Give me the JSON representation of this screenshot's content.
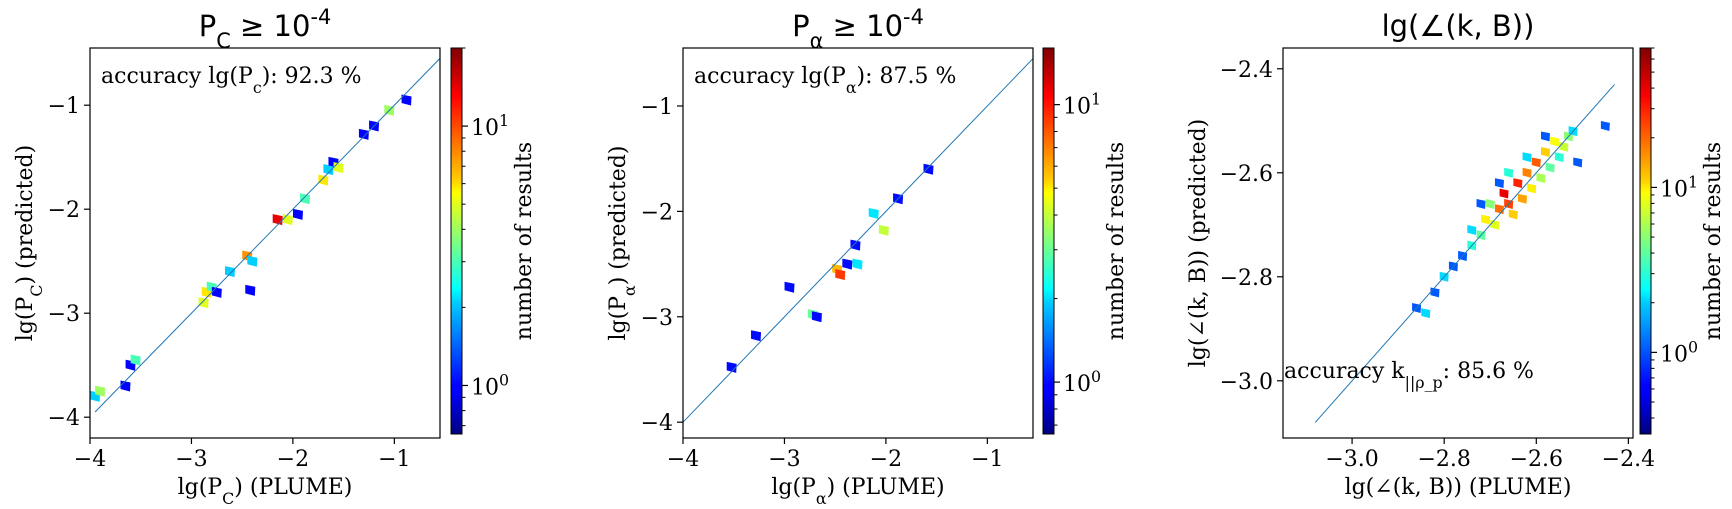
{
  "chart_data": [
    {
      "type": "heatmap",
      "title": "P_C ≥ 10^-4",
      "xlabel": "lg(P_C) (PLUME)",
      "ylabel": "lg(P_C) (predicted)",
      "annotation": "accuracy lg(P_c): 92.3 %",
      "colorbar_label": "number of results",
      "colorbar_ticks": [
        "10^0",
        "10^1"
      ],
      "colorbar_scale": "log",
      "colorbar_range": [
        0.65,
        20
      ],
      "xlim": [
        -4.0,
        -0.55
      ],
      "ylim": [
        -4.2,
        -0.45
      ],
      "xticks": [
        -4,
        -3,
        -2,
        -1
      ],
      "yticks": [
        -4,
        -3,
        -2,
        -1
      ],
      "diagonal": [
        -3.95,
        -0.55
      ],
      "cells": [
        {
          "x": -3.95,
          "y": -3.8,
          "c": 2
        },
        {
          "x": -3.9,
          "y": -3.75,
          "c": 4
        },
        {
          "x": -3.6,
          "y": -3.5,
          "c": 1
        },
        {
          "x": -3.55,
          "y": -3.45,
          "c": 3
        },
        {
          "x": -3.65,
          "y": -3.7,
          "c": 1
        },
        {
          "x": -2.85,
          "y": -2.8,
          "c": 6
        },
        {
          "x": -2.8,
          "y": -2.75,
          "c": 3
        },
        {
          "x": -2.75,
          "y": -2.8,
          "c": 1
        },
        {
          "x": -2.88,
          "y": -2.9,
          "c": 5
        },
        {
          "x": -2.62,
          "y": -2.6,
          "c": 2
        },
        {
          "x": -2.45,
          "y": -2.45,
          "c": 8
        },
        {
          "x": -2.4,
          "y": -2.5,
          "c": 2
        },
        {
          "x": -2.42,
          "y": -2.78,
          "c": 1
        },
        {
          "x": -2.15,
          "y": -2.1,
          "c": 14
        },
        {
          "x": -2.05,
          "y": -2.1,
          "c": 5
        },
        {
          "x": -1.95,
          "y": -2.05,
          "c": 1
        },
        {
          "x": -1.88,
          "y": -1.9,
          "c": 3
        },
        {
          "x": -1.7,
          "y": -1.72,
          "c": 6
        },
        {
          "x": -1.65,
          "y": -1.62,
          "c": 2
        },
        {
          "x": -1.6,
          "y": -1.55,
          "c": 1
        },
        {
          "x": -1.55,
          "y": -1.6,
          "c": 5
        },
        {
          "x": -1.3,
          "y": -1.28,
          "c": 1
        },
        {
          "x": -1.2,
          "y": -1.2,
          "c": 1
        },
        {
          "x": -1.05,
          "y": -1.05,
          "c": 4
        },
        {
          "x": -0.88,
          "y": -0.95,
          "c": 1
        }
      ]
    },
    {
      "type": "heatmap",
      "title": "P_α ≥ 10^-4",
      "xlabel": "lg(P_α) (PLUME)",
      "ylabel": "lg(P_α) (predicted)",
      "annotation": "accuracy lg(P_α): 87.5 %",
      "colorbar_label": "number of results",
      "colorbar_ticks": [
        "10^0",
        "10^1"
      ],
      "colorbar_scale": "log",
      "colorbar_range": [
        0.65,
        16
      ],
      "xlim": [
        -4.0,
        -0.55
      ],
      "ylim": [
        -4.15,
        -0.45
      ],
      "xticks": [
        -4,
        -3,
        -2,
        -1
      ],
      "yticks": [
        -4,
        -3,
        -2,
        -1
      ],
      "diagonal": [
        -4.0,
        -0.55
      ],
      "cells": [
        {
          "x": -3.52,
          "y": -3.48,
          "c": 1
        },
        {
          "x": -3.28,
          "y": -3.18,
          "c": 1
        },
        {
          "x": -2.95,
          "y": -2.72,
          "c": 1
        },
        {
          "x": -2.72,
          "y": -2.98,
          "c": 3
        },
        {
          "x": -2.68,
          "y": -3.0,
          "c": 1
        },
        {
          "x": -2.48,
          "y": -2.55,
          "c": 6
        },
        {
          "x": -2.45,
          "y": -2.6,
          "c": 9
        },
        {
          "x": -2.38,
          "y": -2.5,
          "c": 1
        },
        {
          "x": -2.28,
          "y": -2.5,
          "c": 2
        },
        {
          "x": -2.3,
          "y": -2.32,
          "c": 1
        },
        {
          "x": -2.12,
          "y": -2.02,
          "c": 2
        },
        {
          "x": -2.02,
          "y": -2.18,
          "c": 4
        },
        {
          "x": -1.88,
          "y": -1.88,
          "c": 1
        },
        {
          "x": -1.58,
          "y": -1.6,
          "c": 1
        }
      ]
    },
    {
      "type": "heatmap",
      "title": "lg(∠(k, B))",
      "xlabel": "lg(∠(k, B)) (PLUME)",
      "ylabel": "lg(∠(k, B)) (predicted)",
      "annotation": "accuracy k_||ρ_p: 85.6 %",
      "colorbar_label": "number of results",
      "colorbar_ticks": [
        "10^0",
        "10^1"
      ],
      "colorbar_scale": "log",
      "colorbar_range": [
        0.32,
        70
      ],
      "xlim": [
        -3.15,
        -2.39
      ],
      "ylim": [
        -3.11,
        -2.36
      ],
      "xticks": [
        -3.0,
        -2.8,
        -2.6,
        -2.4
      ],
      "yticks": [
        -3.0,
        -2.8,
        -2.6,
        -2.4
      ],
      "diagonal": [
        -3.08,
        -2.43
      ],
      "cells": [
        {
          "x": -2.86,
          "y": -2.86,
          "c": 1
        },
        {
          "x": -2.84,
          "y": -2.87,
          "c": 2
        },
        {
          "x": -2.82,
          "y": -2.83,
          "c": 1
        },
        {
          "x": -2.8,
          "y": -2.8,
          "c": 2
        },
        {
          "x": -2.78,
          "y": -2.78,
          "c": 1
        },
        {
          "x": -2.76,
          "y": -2.76,
          "c": 1
        },
        {
          "x": -2.74,
          "y": -2.74,
          "c": 3
        },
        {
          "x": -2.72,
          "y": -2.72,
          "c": 4
        },
        {
          "x": -2.74,
          "y": -2.71,
          "c": 2
        },
        {
          "x": -2.71,
          "y": -2.69,
          "c": 10
        },
        {
          "x": -2.7,
          "y": -2.66,
          "c": 5
        },
        {
          "x": -2.69,
          "y": -2.7,
          "c": 8
        },
        {
          "x": -2.68,
          "y": -2.67,
          "c": 20
        },
        {
          "x": -2.67,
          "y": -2.64,
          "c": 40
        },
        {
          "x": -2.66,
          "y": -2.66,
          "c": 25
        },
        {
          "x": -2.65,
          "y": -2.68,
          "c": 12
        },
        {
          "x": -2.64,
          "y": -2.62,
          "c": 30
        },
        {
          "x": -2.63,
          "y": -2.65,
          "c": 15
        },
        {
          "x": -2.62,
          "y": -2.6,
          "c": 18
        },
        {
          "x": -2.61,
          "y": -2.63,
          "c": 10
        },
        {
          "x": -2.6,
          "y": -2.58,
          "c": 22
        },
        {
          "x": -2.59,
          "y": -2.61,
          "c": 6
        },
        {
          "x": -2.58,
          "y": -2.56,
          "c": 12
        },
        {
          "x": -2.57,
          "y": -2.59,
          "c": 4
        },
        {
          "x": -2.56,
          "y": -2.54,
          "c": 9
        },
        {
          "x": -2.55,
          "y": -2.57,
          "c": 3
        },
        {
          "x": -2.54,
          "y": -2.55,
          "c": 7
        },
        {
          "x": -2.53,
          "y": -2.53,
          "c": 5
        },
        {
          "x": -2.52,
          "y": -2.52,
          "c": 2
        },
        {
          "x": -2.51,
          "y": -2.58,
          "c": 1
        },
        {
          "x": -2.45,
          "y": -2.51,
          "c": 1
        },
        {
          "x": -2.66,
          "y": -2.6,
          "c": 3
        },
        {
          "x": -2.62,
          "y": -2.57,
          "c": 2
        },
        {
          "x": -2.68,
          "y": -2.62,
          "c": 1
        },
        {
          "x": -2.58,
          "y": -2.53,
          "c": 1
        },
        {
          "x": -2.72,
          "y": -2.66,
          "c": 1
        }
      ]
    }
  ]
}
